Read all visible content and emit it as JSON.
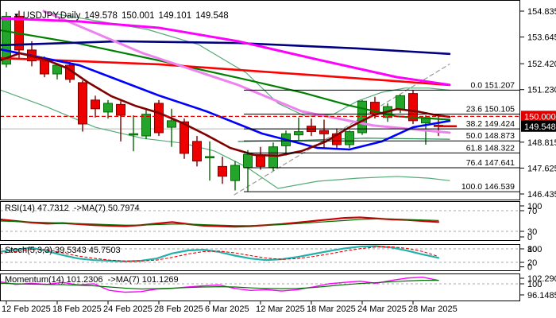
{
  "header": {
    "dropdown_icon": "▼",
    "symbol": "USDJPY,Daily",
    "open": "149.578",
    "high": "150.001",
    "low": "149.101",
    "close": "149.548"
  },
  "colors": {
    "background": "#ffffff",
    "panel_border": "#000000",
    "bull_fill": "#23a42a",
    "bull_stroke": "#056605",
    "bear_fill": "#ef0000",
    "bear_stroke": "#7a0000",
    "alert_line": "#dd0000",
    "bid_box": "#000000",
    "grid_dashed": "#aaaaaa",
    "gray_hline": "#b8b8b8",
    "fib_line": "#000000",
    "trendline": "#999999"
  },
  "chart_data": {
    "type": "candlestick",
    "title": "USDJPY,Daily",
    "timeframe": "Daily",
    "ohlc_current": {
      "open": 149.578,
      "high": 150.001,
      "low": 149.101,
      "close": 149.548
    },
    "price_axis_ticks": [
      "154.835",
      "153.645",
      "152.420",
      "151.230",
      "148.815",
      "147.625",
      "146.435"
    ],
    "alert_price": {
      "label": "150.000",
      "value": 150.0
    },
    "current_bid": {
      "label": "149.548",
      "value": 149.548
    },
    "gray_level": 149.424,
    "x_tick_labels": [
      {
        "label": "12 Feb 2025",
        "bar": 0
      },
      {
        "label": "18 Feb 2025",
        "bar": 4
      },
      {
        "label": "24 Feb 2025",
        "bar": 8
      },
      {
        "label": "28 Feb 2025",
        "bar": 12
      },
      {
        "label": "6 Mar 2025",
        "bar": 16
      },
      {
        "label": "12 Mar 2025",
        "bar": 20
      },
      {
        "label": "18 Mar 2025",
        "bar": 24
      },
      {
        "label": "24 Mar 2025",
        "bar": 28
      },
      {
        "label": "28 Mar 2025",
        "bar": 32
      }
    ],
    "candles": [
      {
        "d": "12 Feb",
        "o": 152.4,
        "h": 154.8,
        "l": 152.25,
        "c": 154.6
      },
      {
        "d": "13 Feb",
        "o": 154.6,
        "h": 154.85,
        "l": 152.65,
        "c": 153.05
      },
      {
        "d": "14 Feb",
        "o": 153.05,
        "h": 153.45,
        "l": 152.3,
        "c": 152.55
      },
      {
        "d": "17 Feb",
        "o": 152.55,
        "h": 152.75,
        "l": 151.8,
        "c": 151.95
      },
      {
        "d": "18 Feb",
        "o": 151.95,
        "h": 152.45,
        "l": 151.7,
        "c": 152.35
      },
      {
        "d": "19 Feb",
        "o": 152.35,
        "h": 152.5,
        "l": 151.55,
        "c": 151.7
      },
      {
        "d": "20 Feb",
        "o": 151.55,
        "h": 151.65,
        "l": 149.3,
        "c": 149.65
      },
      {
        "d": "21 Feb",
        "o": 150.75,
        "h": 150.95,
        "l": 149.95,
        "c": 150.35
      },
      {
        "d": "24 Feb",
        "o": 150.2,
        "h": 150.75,
        "l": 149.9,
        "c": 150.6
      },
      {
        "d": "25 Feb",
        "o": 150.55,
        "h": 150.7,
        "l": 148.85,
        "c": 150.05
      },
      {
        "d": "26 Feb",
        "o": 149.15,
        "h": 150.05,
        "l": 148.4,
        "c": 149.2
      },
      {
        "d": "27 Feb",
        "o": 149.1,
        "h": 150.3,
        "l": 148.95,
        "c": 150.1
      },
      {
        "d": "28 Feb",
        "o": 150.6,
        "h": 150.75,
        "l": 149.1,
        "c": 149.25
      },
      {
        "d": "3 Mar",
        "o": 149.5,
        "h": 150.35,
        "l": 148.6,
        "c": 149.8
      },
      {
        "d": "4 Mar",
        "o": 149.75,
        "h": 149.9,
        "l": 148.05,
        "c": 148.3
      },
      {
        "d": "5 Mar",
        "o": 148.85,
        "h": 149.1,
        "l": 147.7,
        "c": 147.95
      },
      {
        "d": "6 Mar",
        "o": 148.1,
        "h": 148.85,
        "l": 147.05,
        "c": 148.15
      },
      {
        "d": "7 Mar",
        "o": 147.7,
        "h": 148.15,
        "l": 146.9,
        "c": 147.25
      },
      {
        "d": "10 Mar",
        "o": 147.05,
        "h": 147.95,
        "l": 146.6,
        "c": 147.75
      },
      {
        "d": "11 Mar",
        "o": 147.65,
        "h": 148.45,
        "l": 146.54,
        "c": 148.25
      },
      {
        "d": "12 Mar",
        "o": 148.2,
        "h": 148.6,
        "l": 147.55,
        "c": 147.7
      },
      {
        "d": "13 Mar",
        "o": 147.65,
        "h": 148.8,
        "l": 147.5,
        "c": 148.6
      },
      {
        "d": "14 Mar",
        "o": 148.65,
        "h": 149.35,
        "l": 148.2,
        "c": 149.2
      },
      {
        "d": "17 Mar",
        "o": 149.15,
        "h": 149.95,
        "l": 148.9,
        "c": 149.3
      },
      {
        "d": "18 Mar",
        "o": 149.55,
        "h": 149.9,
        "l": 149.1,
        "c": 149.3
      },
      {
        "d": "19 Mar",
        "o": 149.35,
        "h": 149.85,
        "l": 148.55,
        "c": 149.2
      },
      {
        "d": "20 Mar",
        "o": 149.2,
        "h": 149.45,
        "l": 148.5,
        "c": 148.7
      },
      {
        "d": "21 Mar",
        "o": 148.7,
        "h": 149.35,
        "l": 148.55,
        "c": 149.3
      },
      {
        "d": "24 Mar",
        "o": 149.25,
        "h": 150.75,
        "l": 149.15,
        "c": 150.7
      },
      {
        "d": "25 Mar",
        "o": 150.65,
        "h": 150.9,
        "l": 149.9,
        "c": 150.1
      },
      {
        "d": "26 Mar",
        "o": 149.95,
        "h": 150.6,
        "l": 149.75,
        "c": 150.45
      },
      {
        "d": "27 Mar",
        "o": 150.3,
        "h": 151.0,
        "l": 150.15,
        "c": 150.95
      },
      {
        "d": "28 Mar",
        "o": 151.05,
        "h": 151.21,
        "l": 149.65,
        "c": 149.8
      },
      {
        "d": "31 Mar",
        "o": 149.7,
        "h": 150.05,
        "l": 148.7,
        "c": 149.95
      },
      {
        "d": "1 Apr",
        "o": 149.578,
        "h": 150.001,
        "l": 149.101,
        "c": 149.548
      }
    ],
    "fib_retracement": [
      {
        "label": "0.0 151.207",
        "price": 151.207
      },
      {
        "label": "23.6 150.105",
        "price": 150.105
      },
      {
        "label": "38.2 149.424",
        "price": 149.424
      },
      {
        "label": "50.0 148.873",
        "price": 148.873
      },
      {
        "label": "61.8 148.322",
        "price": 148.322
      },
      {
        "label": "76.4 147.641",
        "price": 147.641
      },
      {
        "label": "100.0 146.539",
        "price": 146.539
      }
    ],
    "overlays": [
      {
        "name": "bb-upper",
        "color": "#55aa77",
        "width": 1.2,
        "points": [
          [
            55,
            154.8
          ],
          [
            120,
            154.4
          ],
          [
            185,
            154.0
          ],
          [
            250,
            153.3
          ],
          [
            310,
            152.0
          ],
          [
            350,
            150.6
          ],
          [
            385,
            150.0
          ],
          [
            420,
            150.1
          ],
          [
            450,
            150.7
          ],
          [
            480,
            151.1
          ],
          [
            510,
            151.3
          ],
          [
            540,
            151.3
          ],
          [
            566,
            151.2
          ]
        ]
      },
      {
        "name": "bb-lower",
        "color": "#55aa77",
        "width": 1.2,
        "points": [
          [
            0,
            151.22
          ],
          [
            60,
            150.42
          ],
          [
            120,
            149.5
          ],
          [
            180,
            148.99
          ],
          [
            230,
            148.77
          ],
          [
            270,
            148.41
          ],
          [
            310,
            147.68
          ],
          [
            350,
            146.69
          ],
          [
            400,
            147.02
          ],
          [
            450,
            147.16
          ],
          [
            500,
            147.24
          ],
          [
            540,
            147.16
          ],
          [
            566,
            147.05
          ]
        ]
      },
      {
        "name": "bb-middle",
        "color": "#2e8b57",
        "width": 1.2,
        "points": [
          [
            300,
            148.85
          ],
          [
            380,
            148.9
          ],
          [
            460,
            149.0
          ],
          [
            566,
            148.95
          ]
        ]
      },
      {
        "name": "ma-green",
        "color": "#008000",
        "width": 2.2,
        "points": [
          [
            0,
            153.96
          ],
          [
            100,
            153.34
          ],
          [
            200,
            152.57
          ],
          [
            300,
            151.77
          ],
          [
            380,
            151.1
          ],
          [
            440,
            150.5
          ],
          [
            500,
            150.0
          ],
          [
            566,
            149.85
          ]
        ]
      },
      {
        "name": "ma-navy",
        "color": "#000080",
        "width": 2.6,
        "points": [
          [
            0,
            153.27
          ],
          [
            150,
            153.45
          ],
          [
            300,
            153.37
          ],
          [
            450,
            153.12
          ],
          [
            566,
            152.87
          ]
        ]
      },
      {
        "name": "ma-red",
        "color": "#ff0000",
        "width": 2.6,
        "points": [
          [
            0,
            152.68
          ],
          [
            200,
            152.39
          ],
          [
            400,
            151.88
          ],
          [
            566,
            151.44
          ]
        ]
      },
      {
        "name": "ma-violet",
        "color": "#ee82ee",
        "width": 3,
        "points": [
          [
            55,
            154.84
          ],
          [
            180,
            152.9
          ],
          [
            300,
            151.44
          ],
          [
            380,
            150.23
          ],
          [
            470,
            149.58
          ],
          [
            566,
            149.25
          ]
        ]
      },
      {
        "name": "ma-magenta",
        "color": "#ff00ff",
        "width": 3,
        "points": [
          [
            0,
            154.51
          ],
          [
            100,
            154.36
          ],
          [
            200,
            154.07
          ],
          [
            300,
            153.45
          ],
          [
            400,
            152.61
          ],
          [
            500,
            151.8
          ],
          [
            566,
            151.45
          ]
        ]
      },
      {
        "name": "ma-blue",
        "color": "#0000ff",
        "width": 2.6,
        "points": [
          [
            0,
            153.08
          ],
          [
            100,
            152.35
          ],
          [
            200,
            150.96
          ],
          [
            260,
            150.23
          ],
          [
            330,
            149.21
          ],
          [
            400,
            148.55
          ],
          [
            440,
            148.48
          ],
          [
            480,
            148.84
          ],
          [
            520,
            149.5
          ],
          [
            566,
            149.79
          ]
        ]
      },
      {
        "name": "ma-maroon",
        "color": "#800000",
        "width": 2.6,
        "points": [
          [
            0,
            152.57
          ],
          [
            25,
            152.9
          ],
          [
            55,
            152.64
          ],
          [
            85,
            152.21
          ],
          [
            110,
            151.58
          ],
          [
            140,
            150.93
          ],
          [
            170,
            150.49
          ],
          [
            200,
            150.16
          ],
          [
            230,
            149.69
          ],
          [
            260,
            149.14
          ],
          [
            290,
            148.55
          ],
          [
            320,
            148.23
          ],
          [
            350,
            148.19
          ],
          [
            380,
            148.41
          ],
          [
            410,
            148.84
          ],
          [
            440,
            149.5
          ],
          [
            470,
            150.05
          ],
          [
            500,
            150.34
          ],
          [
            525,
            150.23
          ],
          [
            550,
            150.05
          ],
          [
            566,
            149.98
          ]
        ]
      }
    ],
    "trendline": {
      "points": [
        [
          295,
          146.4
        ],
        [
          566,
          152.4
        ]
      ]
    },
    "indicators": [
      {
        "name": "rsi",
        "label": "RSI(14) 47.7312  ->MA(7) 50.7974",
        "value": 47.7312,
        "ma_value": 50.7974,
        "axis_labels": [
          "100",
          "70",
          "30",
          "0"
        ],
        "dashed_levels": [
          70,
          30
        ],
        "series": [
          {
            "name": "rsi-main",
            "color": "#cc0000",
            "width": 2.2,
            "dash": "",
            "values": [
              53,
              50,
              47,
              45,
              46,
              44,
              42,
              41,
              40,
              42,
              45,
              48,
              44,
              41,
              40,
              39,
              40,
              42,
              44,
              47,
              50,
              53,
              56,
              57,
              55,
              53,
              52,
              50,
              48
            ]
          },
          {
            "name": "rsi-ma",
            "color": "#007000",
            "width": 1.2,
            "dash": "",
            "values": [
              50,
              49,
              48,
              47,
              46,
              45,
              44,
              43,
              42,
              42,
              43,
              44,
              44,
              43,
              42,
              41,
              41,
              42,
              43,
              45,
              47,
              49,
              51,
              53,
              54,
              54,
              53,
              52,
              51
            ]
          }
        ]
      },
      {
        "name": "stochastic",
        "label": "Stoch(5,3,3) 39.5343 45.7503",
        "value": 39.5343,
        "signal_value": 45.7503,
        "axis_labels": [
          "100",
          "80",
          "20",
          "0"
        ],
        "dashed_levels": [
          80,
          20
        ],
        "series": [
          {
            "name": "stoch-k",
            "color": "#20b2aa",
            "width": 2.2,
            "dash": "",
            "values": [
              67,
              77,
              85,
              70,
              52,
              37,
              30,
              27,
              24,
              27,
              37,
              60,
              73,
              76,
              66,
              50,
              37,
              30,
              34,
              44,
              57,
              70,
              82,
              90,
              92,
              86,
              72,
              55,
              40
            ]
          },
          {
            "name": "stoch-d",
            "color": "#ee0000",
            "width": 1.1,
            "dash": "3,3",
            "values": [
              60,
              68,
              77,
              77,
              62,
              48,
              38,
              30,
              26,
              26,
              30,
              42,
              57,
              68,
              70,
              62,
              50,
              39,
              33,
              37,
              46,
              57,
              70,
              81,
              88,
              89,
              82,
              68,
              46
            ]
          }
        ]
      },
      {
        "name": "momentum",
        "label": "Momentum(14) 101.2306  ->MA(7) 101.1269",
        "value": 101.2306,
        "ma_value": 101.1269,
        "axis_labels": [
          "102.2901",
          "100",
          "96.1485"
        ],
        "dashed_levels": [
          100
        ],
        "series": [
          {
            "name": "momentum-main",
            "color": "#ff00ff",
            "width": 1.4,
            "dash": "",
            "values": [
              100.7,
              99.8,
              100.2,
              99.8,
              100.5,
              99.6,
              100.0,
              97.7,
              97.1,
              97.3,
              98.2,
              98.4,
              98.9,
              99.3,
              99.6,
              98.4,
              97.7,
              98.0,
              97.5,
              98.0,
              98.9,
              100.0,
              100.5,
              100.9,
              100.2,
              101.2,
              102.0,
              102.3,
              101.2
            ]
          },
          {
            "name": "momentum-ma",
            "color": "#007000",
            "width": 1.2,
            "dash": "",
            "values": [
              100.2,
              100.0,
              99.9,
              99.8,
              99.7,
              99.5,
              99.3,
              98.9,
              98.5,
              98.2,
              98.3,
              98.5,
              98.7,
              98.9,
              99.0,
              98.9,
              98.6,
              98.4,
              98.3,
              98.4,
              98.7,
              99.2,
              99.7,
              100.1,
              100.4,
              100.7,
              101.0,
              101.2,
              101.2
            ]
          }
        ]
      }
    ]
  }
}
